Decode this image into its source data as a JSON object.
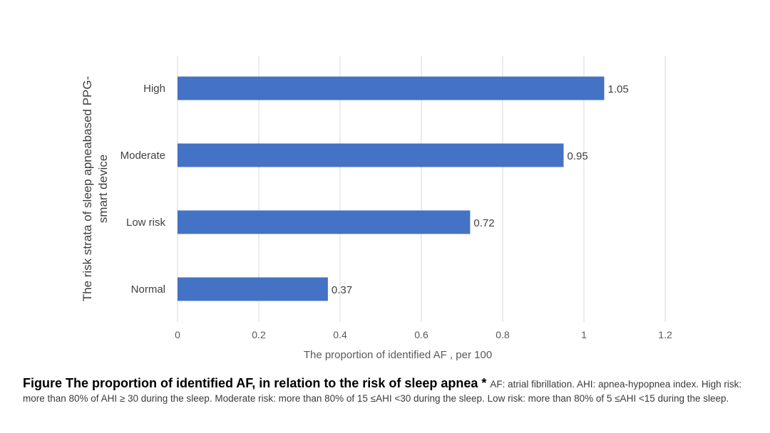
{
  "chart_data": {
    "type": "bar",
    "orientation": "horizontal",
    "categories": [
      "High",
      "Moderate",
      "Low risk",
      "Normal"
    ],
    "values": [
      1.05,
      0.95,
      0.72,
      0.37
    ],
    "data_labels": [
      "1.05",
      "0.95",
      "0.72",
      "0.37"
    ],
    "xlabel": "The proportion of identified AF , per 100",
    "ylabel_lines": [
      "The risk strata of sleep apneabased PPG-",
      "smart device"
    ],
    "xlim": [
      0,
      1.2
    ],
    "xticks": [
      "0",
      "0.2",
      "0.4",
      "0.6",
      "0.8",
      "1",
      "1.2"
    ],
    "grid": "vertical",
    "legend": "none",
    "bar_color": "#4472C4"
  },
  "caption": {
    "title": "Figure The proportion of identified AF, in relation to the risk of sleep apnea",
    "marker": " * ",
    "note": "AF: atrial fibrillation. AHI: apnea-hypopnea index. High risk: more than 80% of AHI ≥ 30 during the sleep. Moderate risk: more than 80% of 15 ≤AHI <30 during the sleep. Low risk: more than 80% of 5 ≤AHI <15 during the sleep."
  }
}
